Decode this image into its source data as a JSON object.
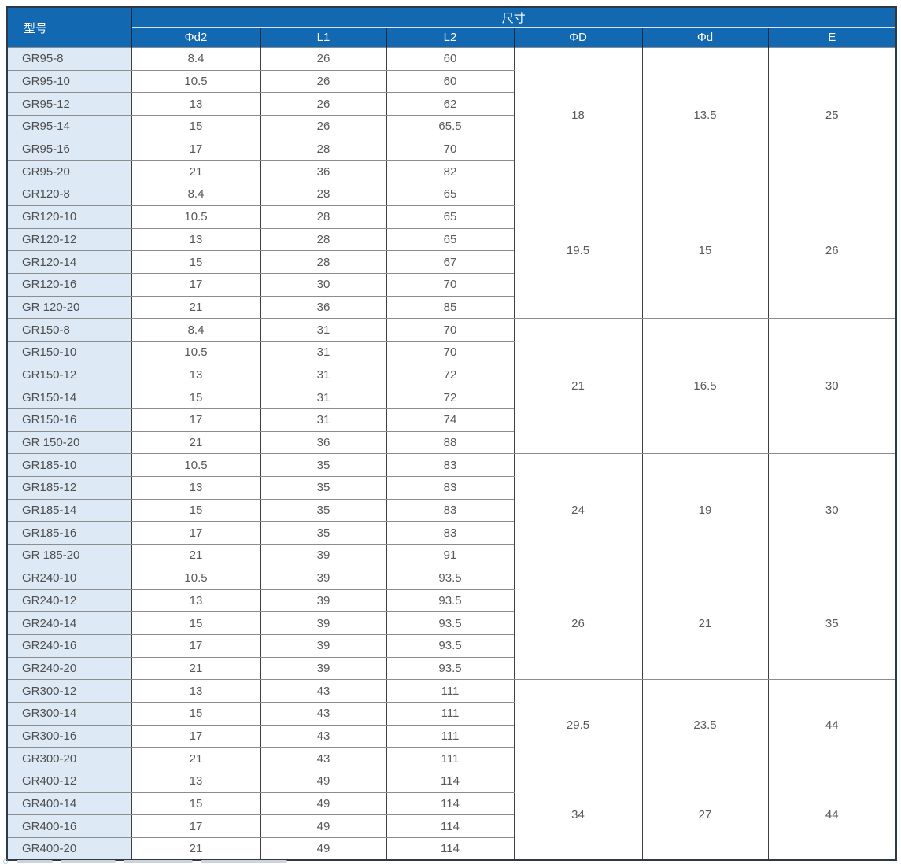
{
  "colors": {
    "header_blue": "#1268b1",
    "header_divider_light": "#d9e5f2",
    "header_divider_dark": "#16293f",
    "row_header_bg": "#ddeaf6",
    "outer_border": "#2c3a48",
    "body_text": "#595959"
  },
  "table": {
    "headers": {
      "model": "型号",
      "size": "尺寸",
      "sub": [
        "Φd2",
        "L1",
        "L2",
        "ΦD",
        "Φd",
        "E"
      ]
    },
    "groups": [
      {
        "shared": {
          "D": "18",
          "d": "13.5",
          "E": "25"
        },
        "rows": [
          [
            "GR95-8",
            "8.4",
            "26",
            "60"
          ],
          [
            "GR95-10",
            "10.5",
            "26",
            "60"
          ],
          [
            "GR95-12",
            "13",
            "26",
            "62"
          ],
          [
            "GR95-14",
            "15",
            "26",
            "65.5"
          ],
          [
            "GR95-16",
            "17",
            "28",
            "70"
          ],
          [
            "GR95-20",
            "21",
            "36",
            "82"
          ]
        ]
      },
      {
        "shared": {
          "D": "19.5",
          "d": "15",
          "E": "26"
        },
        "rows": [
          [
            "GR120-8",
            "8.4",
            "28",
            "65"
          ],
          [
            "GR120-10",
            "10.5",
            "28",
            "65"
          ],
          [
            "GR120-12",
            "13",
            "28",
            "65"
          ],
          [
            "GR120-14",
            "15",
            "28",
            "67"
          ],
          [
            "GR120-16",
            "17",
            "30",
            "70"
          ],
          [
            "GR 120-20",
            "21",
            "36",
            "85"
          ]
        ]
      },
      {
        "shared": {
          "D": "21",
          "d": "16.5",
          "E": "30"
        },
        "rows": [
          [
            "GR150-8",
            "8.4",
            "31",
            "70"
          ],
          [
            "GR150-10",
            "10.5",
            "31",
            "70"
          ],
          [
            "GR150-12",
            "13",
            "31",
            "72"
          ],
          [
            "GR150-14",
            "15",
            "31",
            "72"
          ],
          [
            "GR150-16",
            "17",
            "31",
            "74"
          ],
          [
            "GR 150-20",
            "21",
            "36",
            "88"
          ]
        ]
      },
      {
        "shared": {
          "D": "24",
          "d": "19",
          "E": "30"
        },
        "rows": [
          [
            "GR185-10",
            "10.5",
            "35",
            "83"
          ],
          [
            "GR185-12",
            "13",
            "35",
            "83"
          ],
          [
            "GR185-14",
            "15",
            "35",
            "83"
          ],
          [
            "GR185-16",
            "17",
            "35",
            "83"
          ],
          [
            "GR 185-20",
            "21",
            "39",
            "91"
          ]
        ]
      },
      {
        "shared": {
          "D": "26",
          "d": "21",
          "E": "35"
        },
        "rows": [
          [
            "GR240-10",
            "10.5",
            "39",
            "93.5"
          ],
          [
            "GR240-12",
            "13",
            "39",
            "93.5"
          ],
          [
            "GR240-14",
            "15",
            "39",
            "93.5"
          ],
          [
            "GR240-16",
            "17",
            "39",
            "93.5"
          ],
          [
            "GR240-20",
            "21",
            "39",
            "93.5"
          ]
        ]
      },
      {
        "shared": {
          "D": "29.5",
          "d": "23.5",
          "E": "44"
        },
        "rows": [
          [
            "GR300-12",
            "13",
            "43",
            "111"
          ],
          [
            "GR300-14",
            "15",
            "43",
            "111"
          ],
          [
            "GR300-16",
            "17",
            "43",
            "111"
          ],
          [
            "GR300-20",
            "21",
            "43",
            "111"
          ]
        ]
      },
      {
        "shared": {
          "D": "34",
          "d": "27",
          "E": "44"
        },
        "rows": [
          [
            "GR400-12",
            "13",
            "49",
            "114"
          ],
          [
            "GR400-14",
            "15",
            "49",
            "114"
          ],
          [
            "GR400-16",
            "17",
            "49",
            "114"
          ],
          [
            "GR400-20",
            "21",
            "49",
            "114"
          ]
        ]
      }
    ]
  },
  "footnote_marker": "○"
}
